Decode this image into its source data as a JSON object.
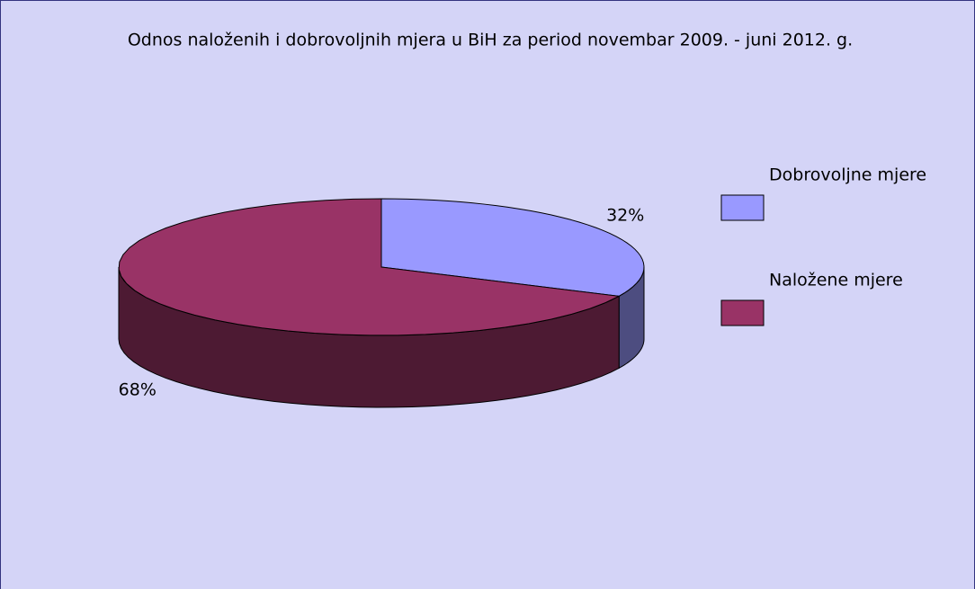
{
  "chart_data": {
    "type": "pie",
    "title": "Odnos naloženih i dobrovoljnih mjera u BiH za period novembar 2009. - juni 2012. g.",
    "categories": [
      "Dobrovoljne mjere",
      "Naložene mjere"
    ],
    "values": [
      32,
      68
    ],
    "value_labels": [
      "32%",
      "68%"
    ],
    "colors": [
      "#9999ff",
      "#993366"
    ],
    "legend": "right"
  }
}
